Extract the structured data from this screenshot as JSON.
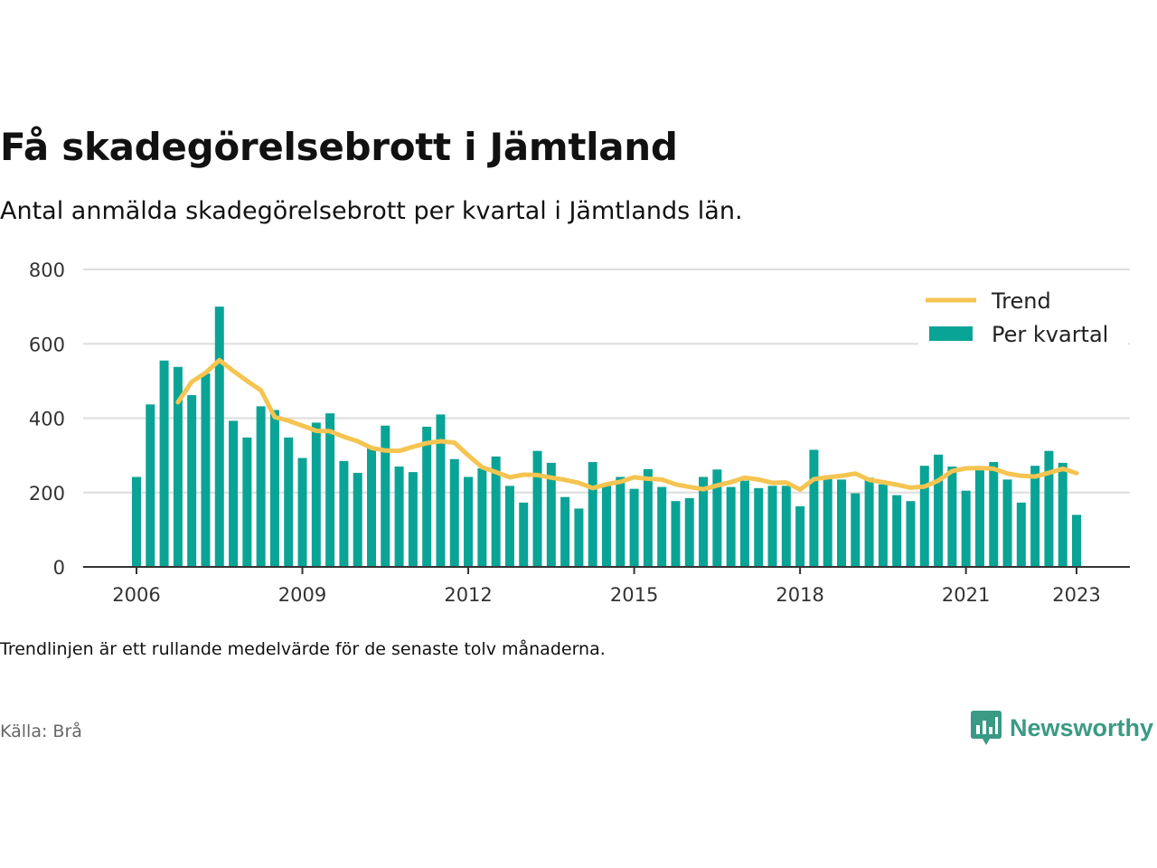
{
  "header": {
    "title": "Få skadegörelsebrott i Jämtland",
    "subtitle": "Antal anmälda skadegörelsebrott per kvartal i Jämtlands län."
  },
  "footer": {
    "note": "Trendlinjen är ett rullande medelvärde för de senaste tolv månaderna.",
    "source": "Källa: Brå",
    "brand": "Newsworthy",
    "brand_icon": "newsworthy-logo-icon"
  },
  "colors": {
    "bar": "#0aa496",
    "trend": "#f5c451",
    "grid": "#dddddd",
    "axis": "#333333"
  },
  "chart_data": {
    "type": "bar",
    "ylim": [
      0,
      800
    ],
    "yticks": [
      0,
      200,
      400,
      600,
      800
    ],
    "xticks": [
      "2006",
      "2009",
      "2012",
      "2015",
      "2018",
      "2021",
      "2023"
    ],
    "legend_position": "top-right",
    "grid": true,
    "x": [
      2006.0,
      2006.25,
      2006.5,
      2006.75,
      2007.0,
      2007.25,
      2007.5,
      2007.75,
      2008.0,
      2008.25,
      2008.5,
      2008.75,
      2009.0,
      2009.25,
      2009.5,
      2009.75,
      2010.0,
      2010.25,
      2010.5,
      2010.75,
      2011.0,
      2011.25,
      2011.5,
      2011.75,
      2012.0,
      2012.25,
      2012.5,
      2012.75,
      2013.0,
      2013.25,
      2013.5,
      2013.75,
      2014.0,
      2014.25,
      2014.5,
      2014.75,
      2015.0,
      2015.25,
      2015.5,
      2015.75,
      2016.0,
      2016.25,
      2016.5,
      2016.75,
      2017.0,
      2017.25,
      2017.5,
      2017.75,
      2018.0,
      2018.25,
      2018.5,
      2018.75,
      2019.0,
      2019.25,
      2019.5,
      2019.75,
      2020.0,
      2020.25,
      2020.5,
      2020.75,
      2021.0,
      2021.25,
      2021.5,
      2021.75,
      2022.0,
      2022.25,
      2022.5,
      2022.75,
      2023.0
    ],
    "series": [
      {
        "name": "Per kvartal",
        "kind": "bar",
        "values": [
          242,
          437,
          555,
          538,
          462,
          520,
          700,
          393,
          348,
          432,
          422,
          348,
          293,
          388,
          413,
          285,
          253,
          323,
          380,
          270,
          255,
          377,
          410,
          290,
          242,
          265,
          297,
          218,
          173,
          312,
          280,
          188,
          157,
          282,
          218,
          242,
          210,
          263,
          215,
          177,
          185,
          242,
          262,
          215,
          232,
          212,
          218,
          218,
          163,
          315,
          242,
          235,
          198,
          240,
          222,
          193,
          177,
          272,
          302,
          270,
          205,
          270,
          282,
          235,
          173,
          272,
          312,
          280,
          140
        ]
      },
      {
        "name": "Trend",
        "kind": "line",
        "values": [
          null,
          null,
          null,
          443,
          498,
          522,
          556,
          527,
          500,
          475,
          403,
          393,
          380,
          366,
          365,
          350,
          338,
          320,
          313,
          312,
          323,
          333,
          338,
          334,
          300,
          268,
          255,
          241,
          248,
          247,
          240,
          234,
          226,
          212,
          222,
          229,
          241,
          237,
          235,
          222,
          215,
          209,
          219,
          228,
          240,
          235,
          226,
          227,
          208,
          236,
          241,
          245,
          251,
          234,
          228,
          221,
          213,
          216,
          232,
          258,
          265,
          266,
          264,
          251,
          245,
          243,
          253,
          264,
          252
        ]
      }
    ]
  }
}
